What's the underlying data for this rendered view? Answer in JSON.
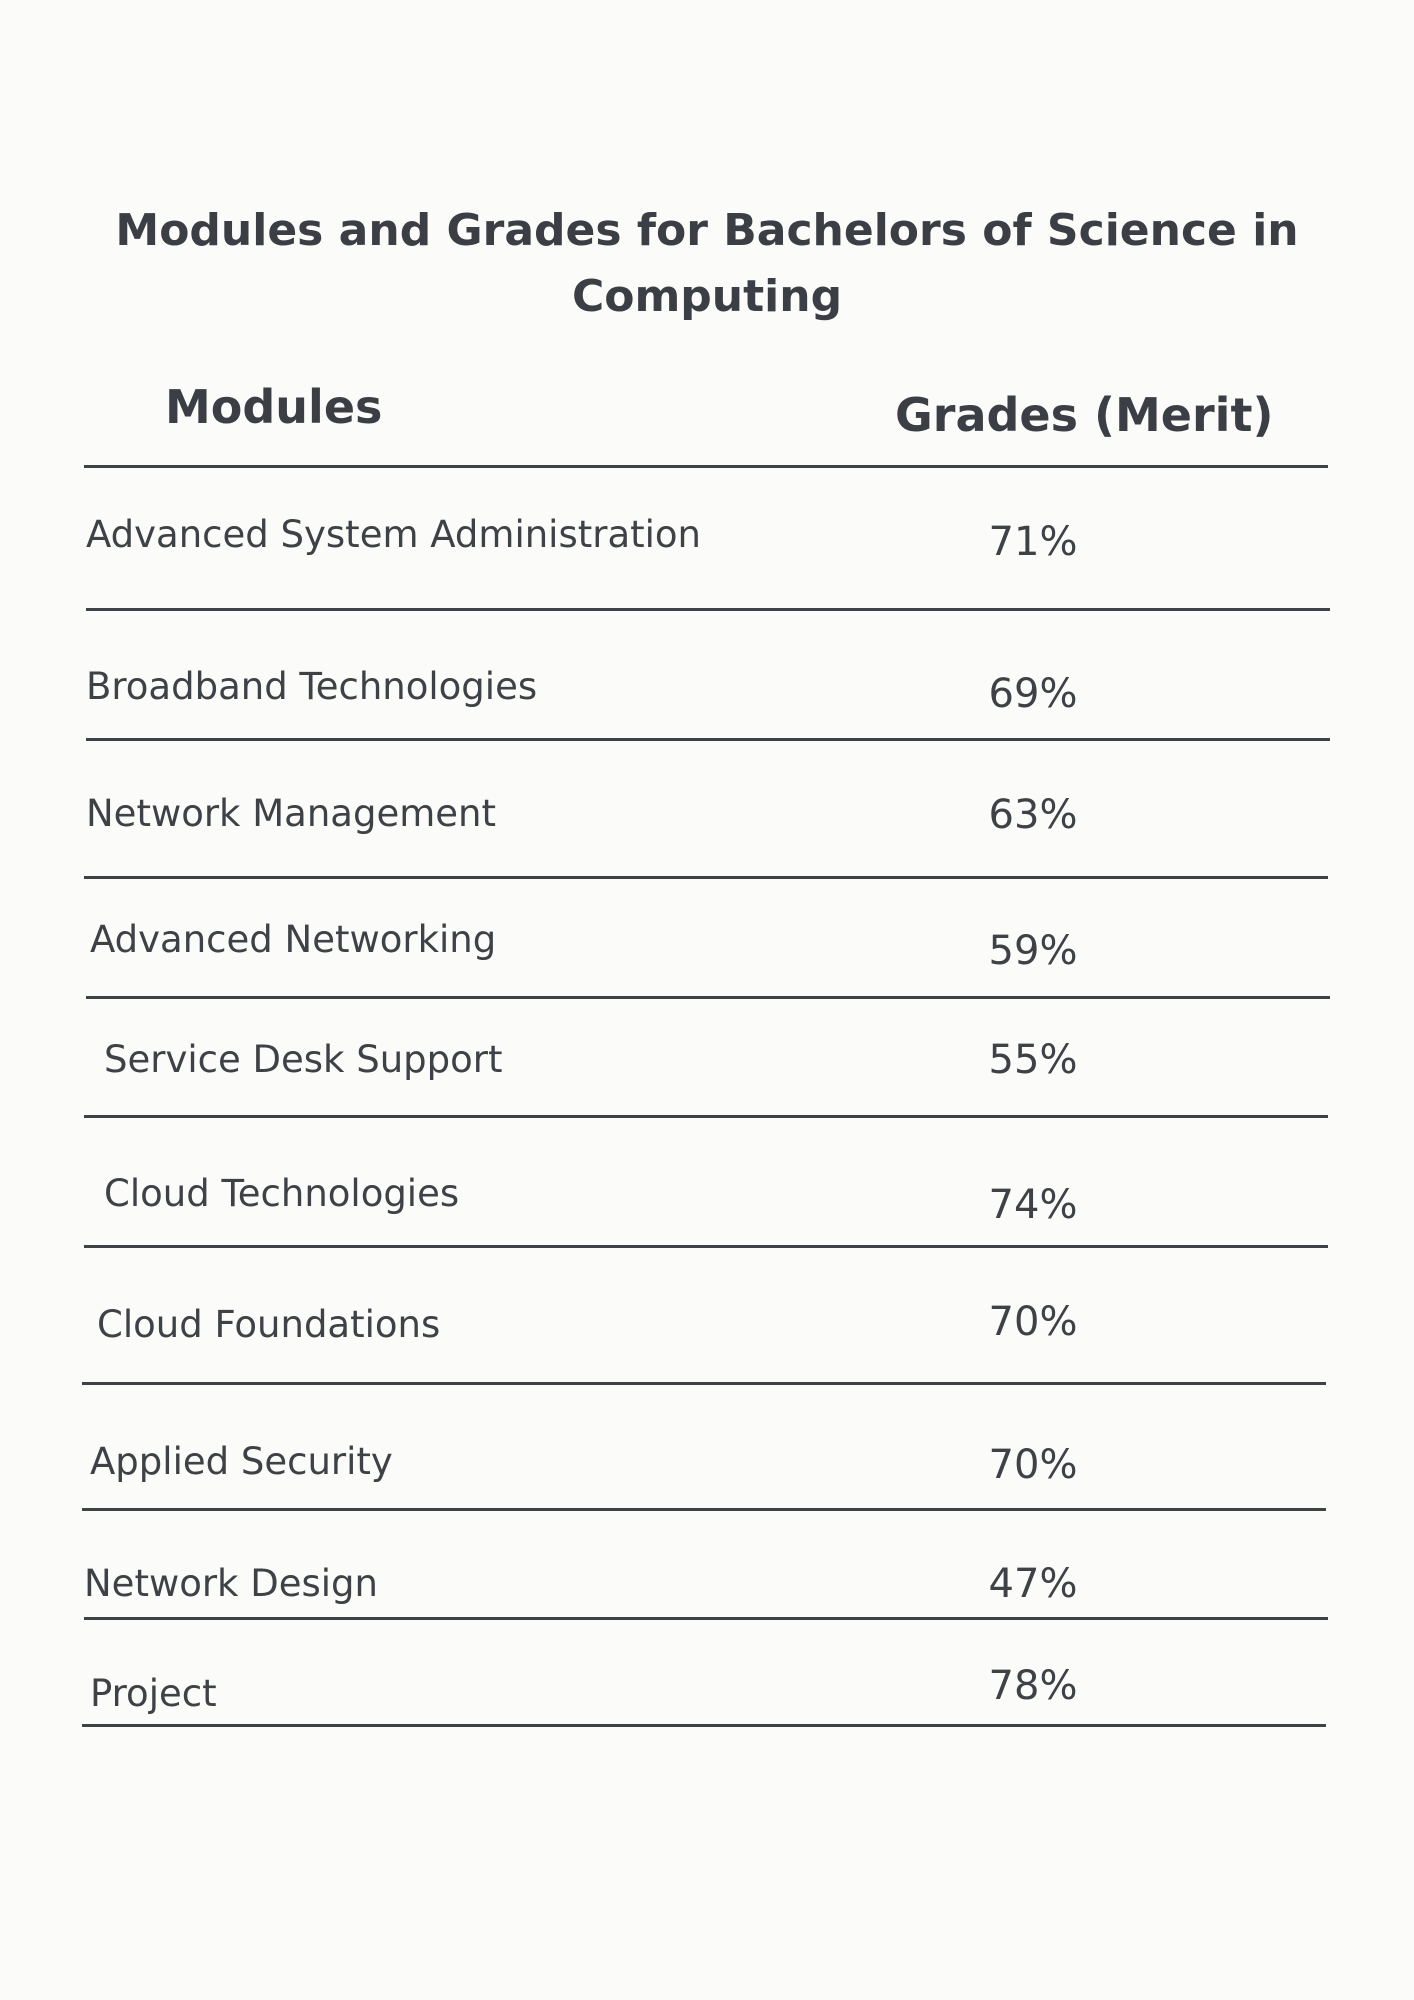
{
  "document": {
    "title_line1": "Modules and Grades for Bachelors of Science in",
    "title_line2": "Computing"
  },
  "table": {
    "columns": [
      "Modules",
      "Grades (Merit)"
    ],
    "rows": [
      {
        "module": "Advanced System Administration",
        "grade": "71%"
      },
      {
        "module": "Broadband Technologies",
        "grade": "69%"
      },
      {
        "module": "Network Management",
        "grade": "63%"
      },
      {
        "module": "Advanced Networking",
        "grade": "59%"
      },
      {
        "module": "Service Desk Support",
        "grade": "55%"
      },
      {
        "module": "Cloud Technologies",
        "grade": "74%"
      },
      {
        "module": "Cloud Foundations",
        "grade": "70%"
      },
      {
        "module": "Applied Security",
        "grade": "70%"
      },
      {
        "module": "Network Design",
        "grade": "47%"
      },
      {
        "module": "Project",
        "grade": "78%"
      }
    ]
  }
}
